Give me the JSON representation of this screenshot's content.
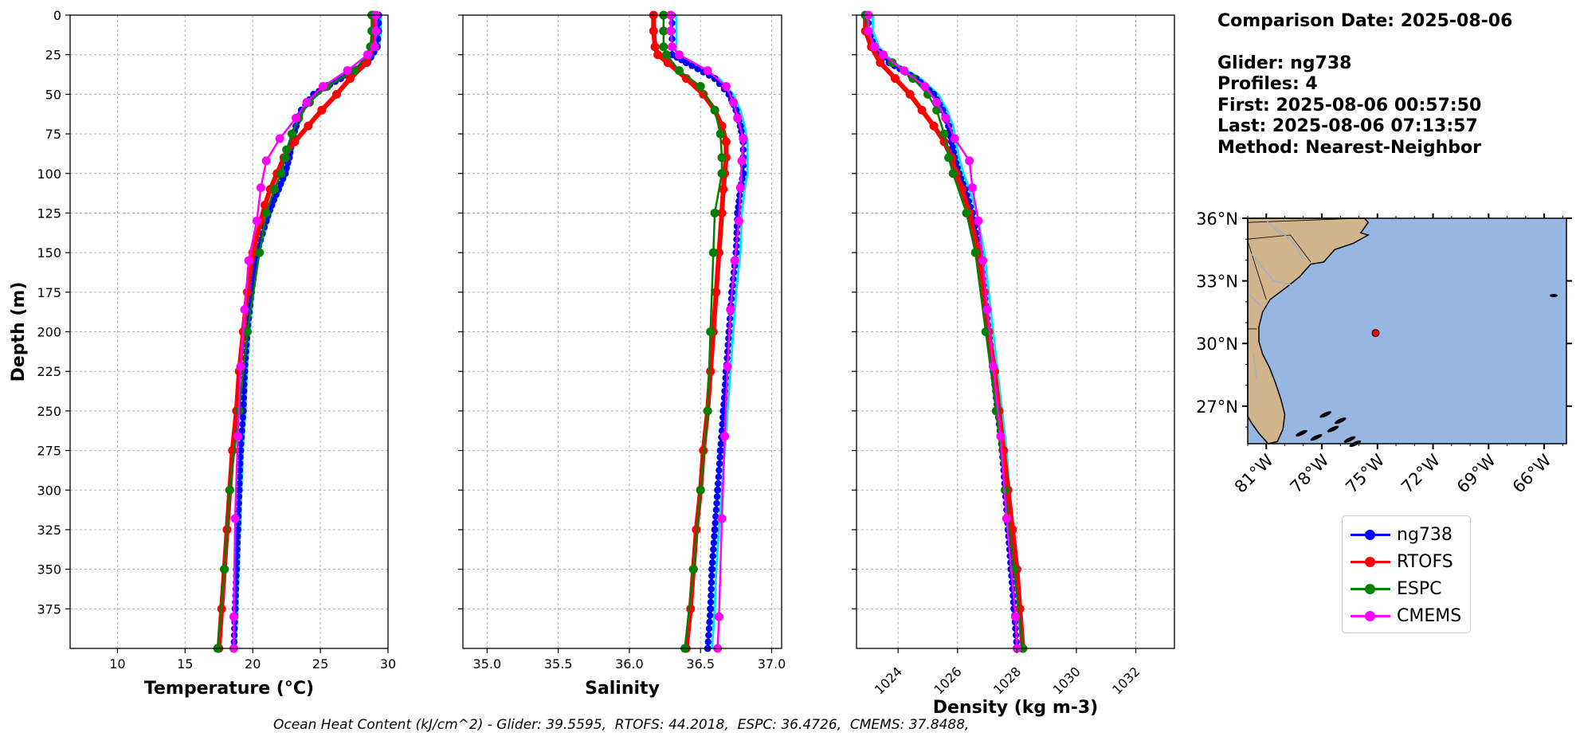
{
  "info": {
    "comparison_date": "Comparison Date: 2025-08-06",
    "glider": "Glider: ng738",
    "profiles": "Profiles: 4",
    "first": "First: 2025-08-06 00:57:50",
    "last": "Last: 2025-08-06 07:13:57",
    "method": "Method: Nearest-Neighbor"
  },
  "footer_text": "Ocean Heat Content (kJ/cm^2) - Glider: 39.5595,  RTOFS: 44.2018,  ESPC: 36.4726,  CMEMS: 37.8488,",
  "legend": [
    {
      "name": "ng738",
      "color": "#0000ff"
    },
    {
      "name": "RTOFS",
      "color": "#ff0000"
    },
    {
      "name": "ESPC",
      "color": "#008000"
    },
    {
      "name": "CMEMS",
      "color": "#ff00ff"
    }
  ],
  "colors": {
    "glider_alt": "#00e5ff",
    "land": "#d2b48c",
    "ocean": "#97b6e1",
    "grid": "#b0b0b0"
  },
  "chart_data": [
    {
      "type": "line",
      "xlabel": "Temperature (°C)",
      "ylabel": "Depth (m)",
      "xlim": [
        6.5,
        30
      ],
      "ylim": [
        400,
        0
      ],
      "xticks": [
        10,
        15,
        20,
        25,
        30
      ],
      "yticks": [
        0,
        25,
        50,
        75,
        100,
        125,
        150,
        175,
        200,
        225,
        250,
        275,
        300,
        325,
        350,
        375
      ],
      "grid": true,
      "series": [
        {
          "name": "ng738",
          "depth": [
            0,
            10,
            20,
            30,
            40,
            50,
            60,
            70,
            80,
            90,
            100,
            110,
            120,
            130,
            150,
            175,
            200,
            225,
            250,
            275,
            300,
            325,
            350,
            375,
            400
          ],
          "values": [
            29.3,
            29.3,
            29.2,
            28.5,
            26.5,
            24.5,
            23.6,
            23.2,
            22.9,
            22.7,
            22.4,
            21.9,
            21.4,
            21,
            20.3,
            19.9,
            19.6,
            19.4,
            19.3,
            19.1,
            19,
            18.9,
            18.8,
            18.7,
            18.6
          ]
        },
        {
          "name": "RTOFS",
          "depth": [
            0,
            10,
            20,
            30,
            40,
            50,
            60,
            70,
            80,
            90,
            100,
            110,
            120,
            130,
            150,
            175,
            200,
            225,
            250,
            275,
            300,
            325,
            350,
            375,
            400
          ],
          "values": [
            28.9,
            28.9,
            28.9,
            28.4,
            27.2,
            26.2,
            25.1,
            24.1,
            23.1,
            22.3,
            21.8,
            21.3,
            20.9,
            20.6,
            20,
            19.6,
            19.3,
            19,
            18.8,
            18.5,
            18.3,
            18.1,
            17.9,
            17.7,
            17.5
          ]
        },
        {
          "name": "ESPC",
          "depth": [
            0,
            10,
            20,
            25,
            35,
            45,
            55,
            65,
            75,
            85,
            90,
            100,
            110,
            125,
            150,
            200,
            250,
            300,
            350,
            400
          ],
          "values": [
            28.8,
            28.8,
            28.7,
            28.5,
            27.5,
            25.5,
            24.2,
            23.4,
            22.9,
            22.5,
            22.4,
            22.1,
            21.6,
            21,
            20.5,
            19.6,
            19,
            18.3,
            17.9,
            17.4
          ]
        },
        {
          "name": "CMEMS",
          "depth": [
            0,
            10,
            20,
            25,
            35,
            45,
            55,
            65,
            78,
            92,
            109,
            130,
            155,
            186,
            222,
            266,
            318,
            380,
            400
          ],
          "values": [
            29.1,
            29.1,
            29,
            28.5,
            27,
            25.2,
            24,
            23.2,
            22,
            21,
            20.6,
            20.3,
            19.7,
            19.4,
            19.1,
            18.9,
            18.7,
            18.6,
            18.6
          ]
        }
      ]
    },
    {
      "type": "line",
      "xlabel": "Salinity",
      "xlim": [
        34.83,
        37.07
      ],
      "ylim": [
        400,
        0
      ],
      "xticks": [
        35.0,
        35.5,
        36.0,
        36.5,
        37.0
      ],
      "grid": true,
      "series": [
        {
          "name": "ng738",
          "depth": [
            0,
            10,
            20,
            25,
            30,
            40,
            50,
            60,
            70,
            80,
            90,
            100,
            110,
            125,
            150,
            175,
            200,
            225,
            250,
            275,
            300,
            325,
            350,
            375,
            400
          ],
          "values": [
            36.3,
            36.3,
            36.3,
            36.3,
            36.4,
            36.6,
            36.7,
            36.75,
            36.78,
            36.8,
            36.8,
            36.8,
            36.78,
            36.76,
            36.75,
            36.72,
            36.7,
            36.68,
            36.66,
            36.64,
            36.62,
            36.6,
            36.58,
            36.57,
            36.55
          ]
        },
        {
          "name": "RTOFS",
          "depth": [
            0,
            10,
            20,
            25,
            30,
            40,
            50,
            60,
            70,
            80,
            90,
            100,
            110,
            125,
            150,
            175,
            200,
            225,
            250,
            275,
            300,
            325,
            350,
            375,
            400
          ],
          "values": [
            36.17,
            36.17,
            36.18,
            36.2,
            36.27,
            36.4,
            36.52,
            36.6,
            36.65,
            36.68,
            36.68,
            36.67,
            36.66,
            36.65,
            36.63,
            36.61,
            36.59,
            36.57,
            36.55,
            36.52,
            36.5,
            36.47,
            36.45,
            36.43,
            36.4
          ]
        },
        {
          "name": "ESPC",
          "depth": [
            0,
            10,
            20,
            25,
            35,
            45,
            60,
            75,
            90,
            100,
            125,
            150,
            200,
            250,
            300,
            350,
            400
          ],
          "values": [
            36.24,
            36.24,
            36.24,
            36.26,
            36.35,
            36.5,
            36.6,
            36.64,
            36.65,
            36.65,
            36.6,
            36.59,
            36.57,
            36.55,
            36.5,
            36.45,
            36.39
          ]
        },
        {
          "name": "CMEMS",
          "depth": [
            0,
            10,
            20,
            25,
            35,
            45,
            55,
            65,
            78,
            92,
            109,
            130,
            155,
            186,
            222,
            266,
            318,
            380,
            400
          ],
          "values": [
            36.29,
            36.29,
            36.3,
            36.35,
            36.55,
            36.68,
            36.73,
            36.76,
            36.8,
            36.79,
            36.78,
            36.77,
            36.74,
            36.71,
            36.69,
            36.67,
            36.65,
            36.63,
            36.62
          ]
        }
      ]
    },
    {
      "type": "line",
      "xlabel": "Density (kg m-3)",
      "xlim": [
        1022.6,
        1033.3
      ],
      "ylim": [
        400,
        0
      ],
      "xticks": [
        1024,
        1026,
        1028,
        1030,
        1032
      ],
      "grid": true,
      "series": [
        {
          "name": "ng738",
          "depth": [
            0,
            10,
            20,
            30,
            40,
            50,
            60,
            70,
            80,
            90,
            100,
            110,
            125,
            150,
            175,
            200,
            225,
            250,
            275,
            300,
            325,
            350,
            375,
            400
          ],
          "values": [
            1023,
            1023,
            1023.2,
            1023.7,
            1024.6,
            1025.2,
            1025.5,
            1025.7,
            1025.8,
            1025.9,
            1026.05,
            1026.25,
            1026.5,
            1026.75,
            1026.9,
            1027.05,
            1027.2,
            1027.35,
            1027.5,
            1027.6,
            1027.7,
            1027.8,
            1027.9,
            1028
          ]
        },
        {
          "name": "RTOFS",
          "depth": [
            0,
            10,
            20,
            30,
            40,
            50,
            60,
            70,
            80,
            90,
            100,
            110,
            125,
            150,
            175,
            200,
            225,
            250,
            275,
            300,
            325,
            350,
            375,
            400
          ],
          "values": [
            1022.9,
            1022.9,
            1023.1,
            1023.4,
            1023.9,
            1024.4,
            1024.8,
            1025.2,
            1025.55,
            1025.8,
            1025.95,
            1026.15,
            1026.4,
            1026.7,
            1026.9,
            1027.05,
            1027.25,
            1027.4,
            1027.55,
            1027.7,
            1027.85,
            1028,
            1028.1,
            1028.2
          ]
        },
        {
          "name": "ESPC",
          "depth": [
            0,
            10,
            20,
            30,
            40,
            50,
            60,
            75,
            90,
            100,
            125,
            150,
            200,
            250,
            300,
            350,
            400
          ],
          "values": [
            1022.9,
            1023,
            1023.2,
            1023.8,
            1024.5,
            1025,
            1025.3,
            1025.55,
            1025.7,
            1025.85,
            1026.3,
            1026.6,
            1026.95,
            1027.3,
            1027.6,
            1027.9,
            1028.2
          ]
        },
        {
          "name": "CMEMS",
          "depth": [
            0,
            10,
            20,
            25,
            35,
            45,
            55,
            65,
            78,
            92,
            109,
            130,
            155,
            186,
            222,
            266,
            318,
            380,
            400
          ],
          "values": [
            1023,
            1023,
            1023.2,
            1023.5,
            1024.2,
            1024.9,
            1025.3,
            1025.6,
            1025.9,
            1026.4,
            1026.5,
            1026.7,
            1026.85,
            1027,
            1027.2,
            1027.45,
            1027.65,
            1027.95,
            1028
          ]
        }
      ]
    },
    {
      "type": "scatter",
      "xticks": [
        "81°W",
        "78°W",
        "75°W",
        "72°W",
        "69°W",
        "66°W"
      ],
      "yticks": [
        "27°N",
        "30°N",
        "33°N",
        "36°N"
      ],
      "xlim": [
        -82,
        -64.8
      ],
      "ylim": [
        25.2,
        36
      ],
      "points": [
        {
          "lon": -75.1,
          "lat": 30.5,
          "color": "#ff0000"
        }
      ]
    }
  ]
}
